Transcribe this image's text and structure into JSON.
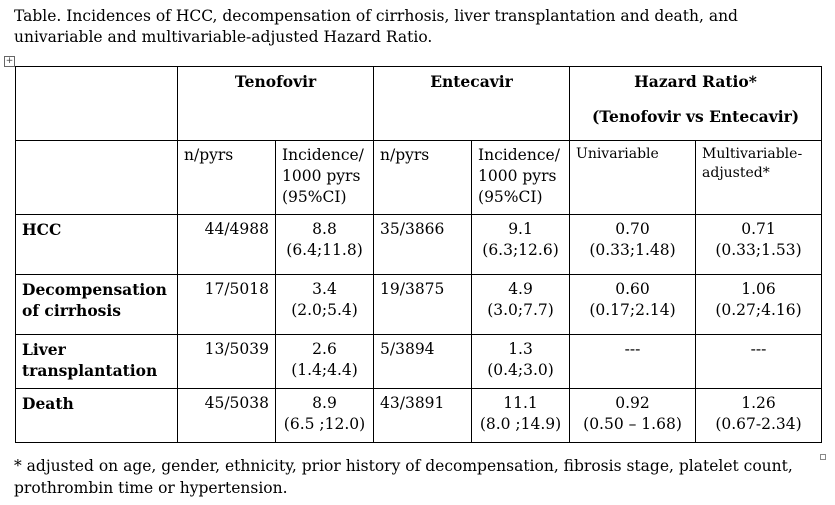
{
  "caption": "Table. Incidences of HCC, decompensation of cirrhosis, liver transplantation and death, and univariable and multivariable-adjusted Hazard Ratio.",
  "table": {
    "groups": {
      "tenofovir": "Tenofovir",
      "entecavir": "Entecavir",
      "hazard_ratio": "Hazard Ratio*",
      "hazard_ratio_sub": "(Tenofovir vs Entecavir)"
    },
    "subheaders": {
      "n_pyrs": "n/pyrs",
      "incidence_1": "Incidence/",
      "incidence_2": "1000 pyrs",
      "incidence_3": "(95%CI)",
      "univariable": "Univariable",
      "multivariable": "Multivariable-adjusted*"
    },
    "rows": [
      {
        "label": "HCC",
        "ten_n": "44/4988",
        "ten_inc": "8.8",
        "ten_ci": "(6.4;11.8)",
        "ent_n": "35/3866",
        "ent_inc": "9.1",
        "ent_ci": "(6.3;12.6)",
        "uni": "0.70",
        "uni_ci": "(0.33;1.48)",
        "multi": "0.71",
        "multi_ci": "(0.33;1.53)"
      },
      {
        "label": "Decompensation of cirrhosis",
        "ten_n": "17/5018",
        "ten_inc": "3.4",
        "ten_ci": "(2.0;5.4)",
        "ent_n": "19/3875",
        "ent_inc": "4.9",
        "ent_ci": "(3.0;7.7)",
        "uni": "0.60",
        "uni_ci": "(0.17;2.14)",
        "multi": "1.06",
        "multi_ci": "(0.27;4.16)"
      },
      {
        "label": "Liver transplantation",
        "ten_n": "13/5039",
        "ten_inc": "2.6",
        "ten_ci": "(1.4;4.4)",
        "ent_n": "5/3894",
        "ent_inc": "1.3",
        "ent_ci": "(0.4;3.0)",
        "uni": "---",
        "uni_ci": "",
        "multi": "---",
        "multi_ci": ""
      },
      {
        "label": "Death",
        "ten_n": "45/5038",
        "ten_inc": "8.9",
        "ten_ci": "(6.5 ;12.0)",
        "ent_n": "43/3891",
        "ent_inc": "11.1",
        "ent_ci": "(8.0 ;14.9)",
        "uni": "0.92",
        "uni_ci": "(0.50 – 1.68)",
        "multi": "1.26",
        "multi_ci": "(0.67-2.34)"
      }
    ]
  },
  "footnote": "* adjusted on age, gender, ethnicity, prior history of decompensation, fibrosis stage, platelet count, prothrombin time or hypertension.",
  "icons": {
    "table_anchor": "move-handle-icon"
  }
}
